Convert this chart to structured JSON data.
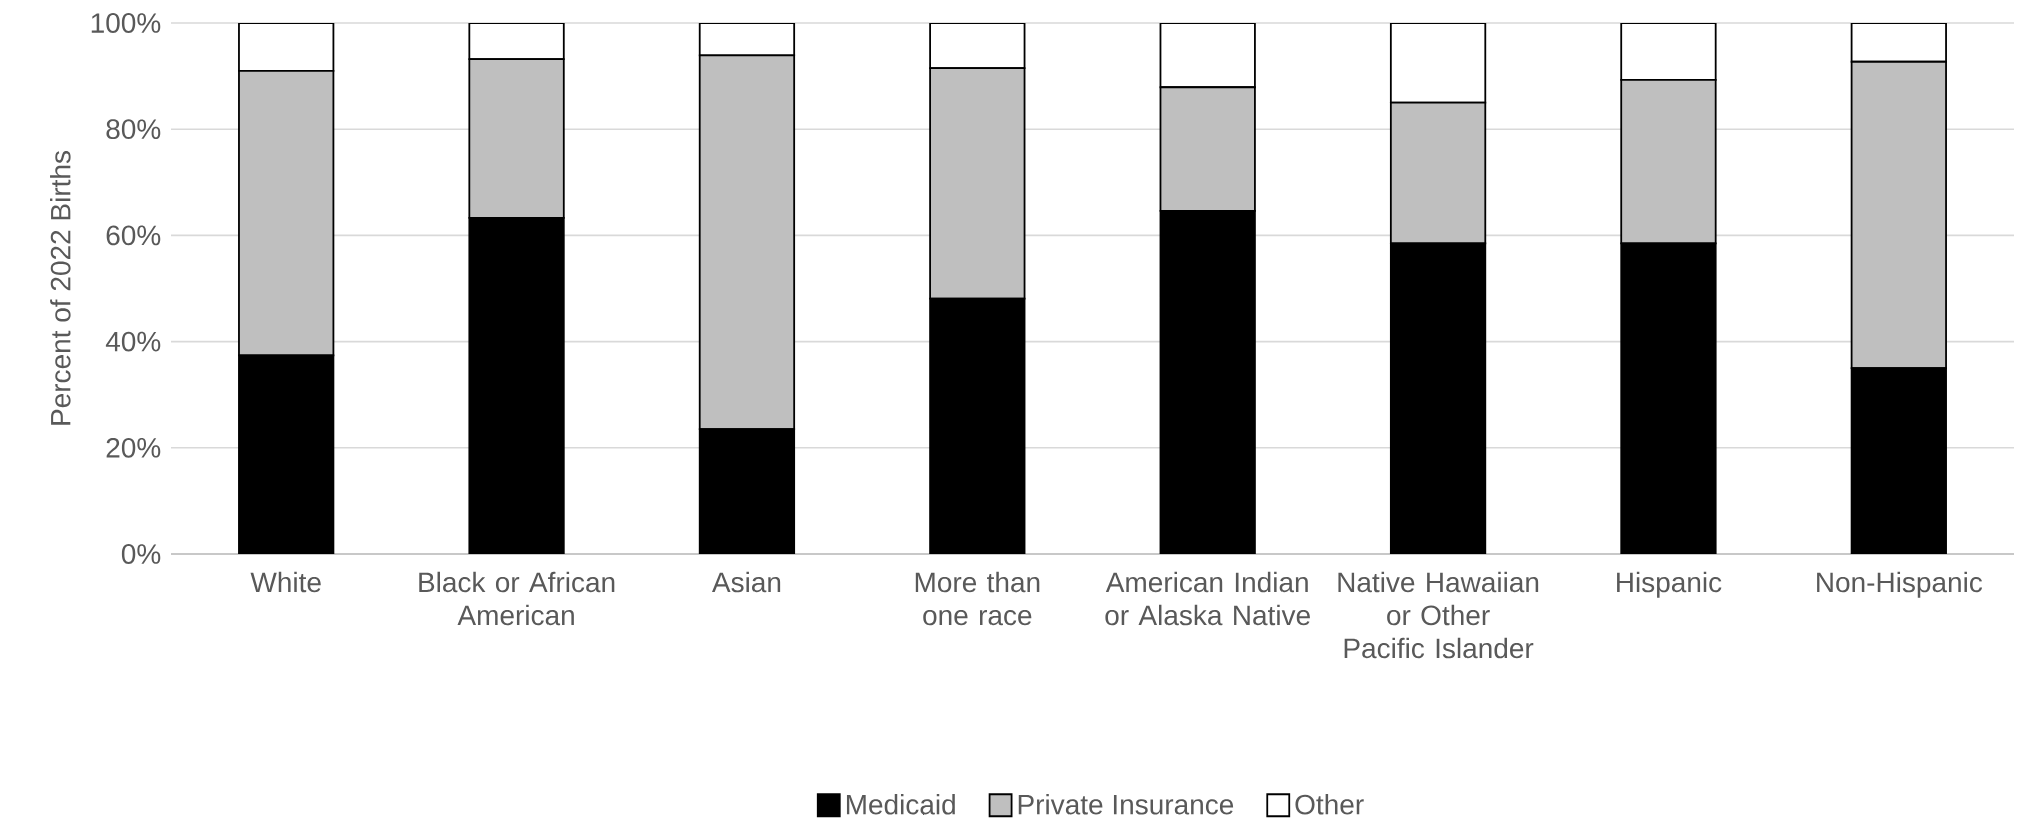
{
  "chart_data": {
    "type": "bar",
    "stacked": true,
    "ylabel": "Percent of 2022 Births",
    "categories": [
      "White",
      "Black or African American",
      "Asian",
      "More than one race",
      "American Indian or Alaska Native",
      "Native Hawaiian or Other Pacific Islander",
      "Hispanic",
      "Non-Hispanic"
    ],
    "series": [
      {
        "name": "Medicaid",
        "color": "#000000",
        "values": [
          37.4,
          63.3,
          23.5,
          48.1,
          64.6,
          58.5,
          58.5,
          35.0
        ]
      },
      {
        "name": "Private Insurance",
        "color": "#bfbfbf",
        "values": [
          53.6,
          29.9,
          70.4,
          43.4,
          23.3,
          26.5,
          30.8,
          57.7
        ]
      },
      {
        "name": "Other",
        "color": "#ffffff",
        "values": [
          9.0,
          6.8,
          6.1,
          8.5,
          12.1,
          15.0,
          10.7,
          7.3
        ]
      }
    ],
    "ylim": [
      0,
      100
    ],
    "yticks": [
      {
        "value": 0,
        "label": "0%"
      },
      {
        "value": 20,
        "label": "20%"
      },
      {
        "value": 40,
        "label": "40%"
      },
      {
        "value": 60,
        "label": "60%"
      },
      {
        "value": 80,
        "label": "80%"
      },
      {
        "value": 100,
        "label": "100%"
      }
    ],
    "grid": "y",
    "legend": "bottom"
  }
}
